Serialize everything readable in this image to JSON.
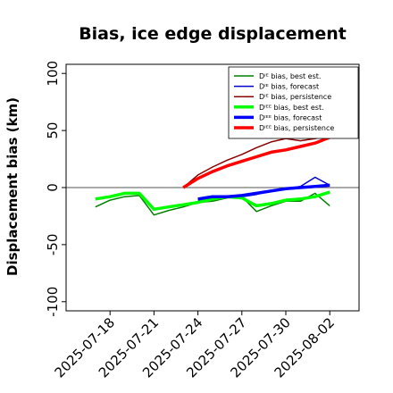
{
  "chart_data": {
    "type": "line",
    "title": "Bias, ice edge displacement",
    "ylabel": "Displacement bias (km)",
    "xlabel": "",
    "ylim": [
      -108,
      108
    ],
    "yticks": [
      -100,
      -50,
      0,
      50,
      100
    ],
    "xlim": [
      "2025-07-15",
      "2025-08-04"
    ],
    "xticks": [
      "2025-07-18",
      "2025-07-21",
      "2025-07-24",
      "2025-07-27",
      "2025-07-30",
      "2025-08-02"
    ],
    "highlight_tick": {
      "label": "2025-07-24",
      "color": "#228B22"
    },
    "zero_line": true,
    "legend_position": "top-right",
    "series": [
      {
        "name": "Dᴵᴱ bias, best est.",
        "color": "#008000",
        "width": 1.5,
        "x": [
          "2025-07-17",
          "2025-07-18",
          "2025-07-19",
          "2025-07-20",
          "2025-07-21",
          "2025-07-22",
          "2025-07-23",
          "2025-07-24",
          "2025-07-25",
          "2025-07-26",
          "2025-07-27",
          "2025-07-28",
          "2025-07-29",
          "2025-07-30",
          "2025-07-31",
          "2025-08-01",
          "2025-08-02"
        ],
        "y": [
          -17,
          -11,
          -8,
          -7,
          -24,
          -20,
          -17,
          -13,
          -12,
          -9,
          -8,
          -21,
          -16,
          -12,
          -12,
          -5,
          -16
        ]
      },
      {
        "name": "Dᴵᴱ bias, forecast",
        "color": "#0000cd",
        "width": 1.5,
        "x": [
          "2025-07-24",
          "2025-07-25",
          "2025-07-26",
          "2025-07-27",
          "2025-07-28",
          "2025-07-29",
          "2025-07-30",
          "2025-07-31",
          "2025-08-01",
          "2025-08-02"
        ],
        "y": [
          -11,
          -9,
          -8,
          -8,
          -6,
          -3,
          -1,
          1,
          9,
          2
        ]
      },
      {
        "name": "Dᴵᴱ bias, persistence",
        "color": "#8b0000",
        "width": 1.5,
        "x": [
          "2025-07-23",
          "2025-07-24",
          "2025-07-25",
          "2025-07-26",
          "2025-07-27",
          "2025-07-28",
          "2025-07-29",
          "2025-07-30",
          "2025-07-31",
          "2025-08-01",
          "2025-08-02"
        ],
        "y": [
          0,
          11,
          18,
          24,
          29,
          35,
          40,
          43,
          41,
          43,
          45
        ]
      },
      {
        "name": "Dᴵᴱᴱ bias, best est.",
        "color": "#00ff00",
        "width": 3.5,
        "x": [
          "2025-07-17",
          "2025-07-18",
          "2025-07-19",
          "2025-07-20",
          "2025-07-21",
          "2025-07-22",
          "2025-07-23",
          "2025-07-24",
          "2025-07-25",
          "2025-07-26",
          "2025-07-27",
          "2025-07-28",
          "2025-07-29",
          "2025-07-30",
          "2025-07-31",
          "2025-08-01",
          "2025-08-02"
        ],
        "y": [
          -10,
          -8,
          -5,
          -5,
          -19,
          -17,
          -15,
          -13,
          -10,
          -8,
          -9,
          -16,
          -14,
          -11,
          -10,
          -8,
          -4
        ]
      },
      {
        "name": "Dᴵᴱᴱ bias, forecast",
        "color": "#0000ff",
        "width": 3.5,
        "x": [
          "2025-07-24",
          "2025-07-25",
          "2025-07-26",
          "2025-07-27",
          "2025-07-28",
          "2025-07-29",
          "2025-07-30",
          "2025-07-31",
          "2025-08-01",
          "2025-08-02"
        ],
        "y": [
          -10,
          -8,
          -8,
          -7,
          -5,
          -3,
          -1,
          0,
          1,
          2
        ]
      },
      {
        "name": "Dᴵᴱᴱ bias, persistence",
        "color": "#ff0000",
        "width": 3.5,
        "x": [
          "2025-07-23",
          "2025-07-24",
          "2025-07-25",
          "2025-07-26",
          "2025-07-27",
          "2025-07-28",
          "2025-07-29",
          "2025-07-30",
          "2025-07-31",
          "2025-08-01",
          "2025-08-02"
        ],
        "y": [
          0,
          8,
          14,
          19,
          23,
          27,
          31,
          33,
          36,
          39,
          44
        ]
      }
    ]
  }
}
